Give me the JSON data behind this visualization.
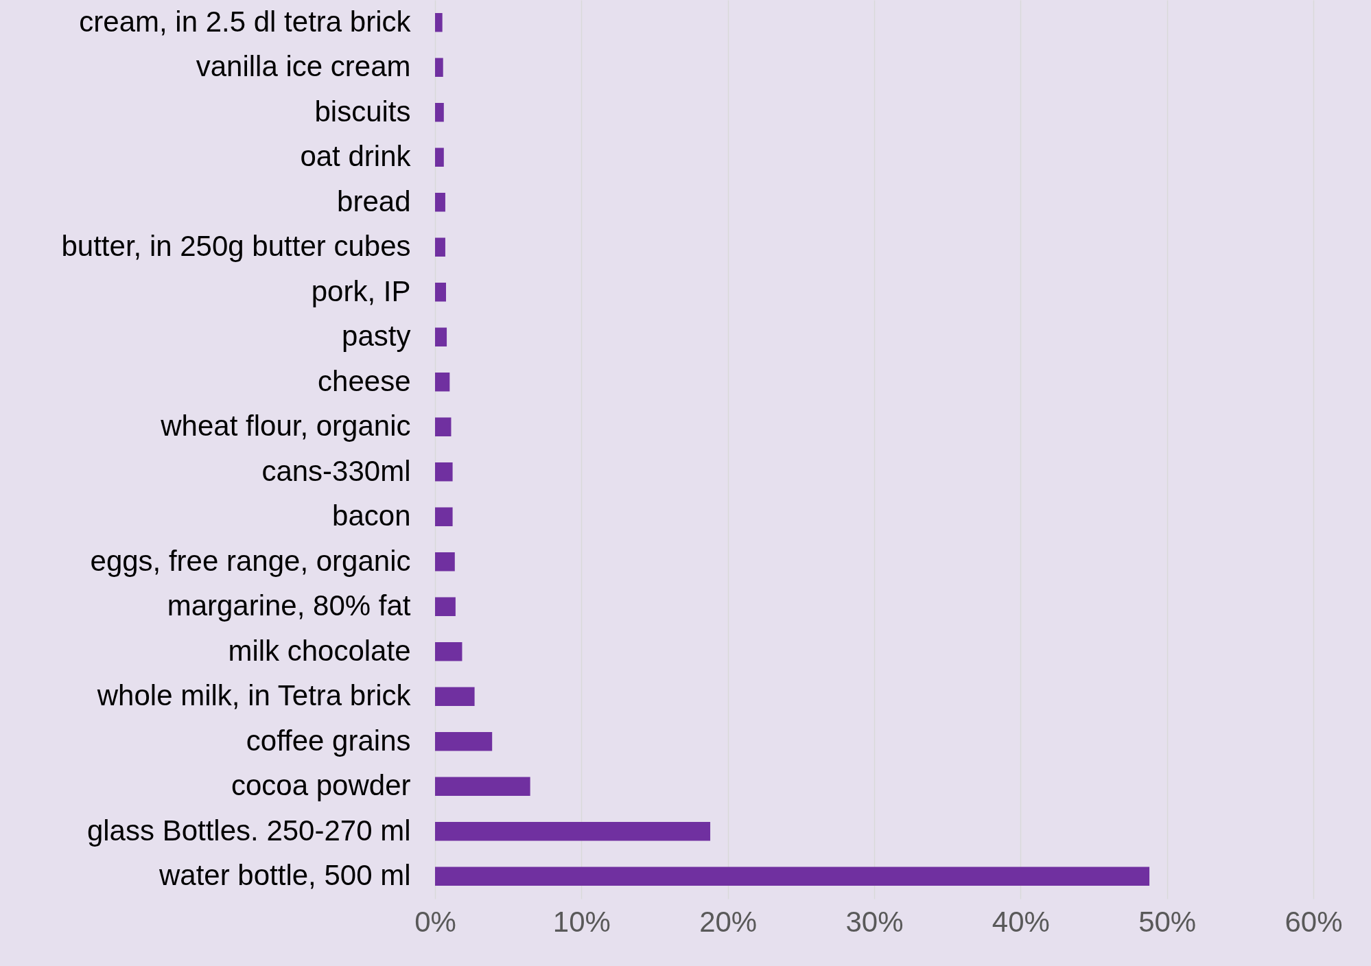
{
  "chart_data": {
    "type": "bar",
    "orientation": "horizontal",
    "categories": [
      "cream, in 2.5 dl tetra brick",
      "vanilla ice cream",
      "biscuits",
      "oat drink",
      "bread",
      "butter, in 250g butter cubes",
      "pork, IP",
      "pasty",
      "cheese",
      "wheat flour, organic",
      "cans-330ml",
      "bacon",
      "eggs, free range, organic",
      "margarine, 80% fat",
      "milk chocolate",
      "whole milk, in Tetra brick",
      "coffee grains",
      "cocoa powder",
      "glass Bottles. 250-270 ml",
      "water bottle, 500 ml"
    ],
    "values": [
      0.5,
      0.55,
      0.6,
      0.6,
      0.7,
      0.7,
      0.75,
      0.8,
      1.0,
      1.1,
      1.2,
      1.2,
      1.35,
      1.4,
      1.85,
      2.7,
      3.9,
      6.5,
      18.8,
      48.8
    ],
    "color": "#7030a0",
    "xlim": [
      0,
      60
    ],
    "xticks": [
      {
        "value": 0,
        "label": "0%"
      },
      {
        "value": 10,
        "label": "10%"
      },
      {
        "value": 20,
        "label": "20%"
      },
      {
        "value": 30,
        "label": "30%"
      },
      {
        "value": 40,
        "label": "40%"
      },
      {
        "value": 50,
        "label": "50%"
      },
      {
        "value": 60,
        "label": "60%"
      }
    ],
    "grid": "x"
  }
}
